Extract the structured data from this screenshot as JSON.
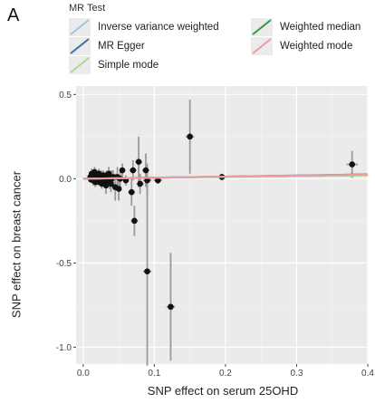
{
  "panel_label": "A",
  "legend": {
    "title": "MR Test",
    "items": [
      {
        "label": "Inverse variance weighted",
        "color": "#9ec7df"
      },
      {
        "label": "MR Egger",
        "color": "#3d6fb0"
      },
      {
        "label": "Simple mode",
        "color": "#a6dc8f"
      },
      {
        "label": "Weighted median",
        "color": "#2f9a3c"
      },
      {
        "label": "Weighted mode",
        "color": "#f4999a"
      }
    ]
  },
  "chart_data": {
    "type": "scatter",
    "xlabel": "SNP effect on serum 25OHD",
    "ylabel": "SNP effect on breast cancer",
    "xlim": [
      -0.01,
      0.4
    ],
    "ylim": [
      -1.1,
      0.55
    ],
    "x_ticks": [
      0.0,
      0.1,
      0.2,
      0.3,
      0.4
    ],
    "x_tick_labels": [
      "0.0",
      "0.1",
      "0.2",
      "0.3",
      "0.4"
    ],
    "y_ticks": [
      0.5,
      0.0,
      -0.5,
      -1.0
    ],
    "y_tick_labels": [
      "0.5",
      "0.0",
      "-0.5",
      "-1.0"
    ],
    "grid": true,
    "points": [
      {
        "x": 0.01,
        "y": 0.01,
        "xerr": 0.004,
        "yerr": 0.02
      },
      {
        "x": 0.011,
        "y": -0.005,
        "xerr": 0.004,
        "yerr": 0.02
      },
      {
        "x": 0.012,
        "y": 0.03,
        "xerr": 0.004,
        "yerr": 0.03
      },
      {
        "x": 0.013,
        "y": 0.02,
        "xerr": 0.004,
        "yerr": 0.02
      },
      {
        "x": 0.014,
        "y": -0.01,
        "xerr": 0.004,
        "yerr": 0.03
      },
      {
        "x": 0.015,
        "y": 0.0,
        "xerr": 0.004,
        "yerr": 0.02
      },
      {
        "x": 0.016,
        "y": 0.04,
        "xerr": 0.004,
        "yerr": 0.03
      },
      {
        "x": 0.017,
        "y": -0.02,
        "xerr": 0.004,
        "yerr": 0.03
      },
      {
        "x": 0.018,
        "y": 0.01,
        "xerr": 0.004,
        "yerr": 0.02
      },
      {
        "x": 0.019,
        "y": 0.02,
        "xerr": 0.004,
        "yerr": 0.02
      },
      {
        "x": 0.02,
        "y": -0.01,
        "xerr": 0.004,
        "yerr": 0.03
      },
      {
        "x": 0.021,
        "y": 0.0,
        "xerr": 0.004,
        "yerr": 0.02
      },
      {
        "x": 0.022,
        "y": 0.03,
        "xerr": 0.004,
        "yerr": 0.03
      },
      {
        "x": 0.023,
        "y": -0.02,
        "xerr": 0.004,
        "yerr": 0.02
      },
      {
        "x": 0.024,
        "y": 0.01,
        "xerr": 0.004,
        "yerr": 0.02
      },
      {
        "x": 0.025,
        "y": 0.02,
        "xerr": 0.004,
        "yerr": 0.03
      },
      {
        "x": 0.026,
        "y": -0.03,
        "xerr": 0.004,
        "yerr": 0.03
      },
      {
        "x": 0.027,
        "y": 0.0,
        "xerr": 0.004,
        "yerr": 0.02
      },
      {
        "x": 0.028,
        "y": 0.02,
        "xerr": 0.004,
        "yerr": 0.03
      },
      {
        "x": 0.029,
        "y": -0.01,
        "xerr": 0.004,
        "yerr": 0.02
      },
      {
        "x": 0.03,
        "y": 0.01,
        "xerr": 0.004,
        "yerr": 0.03
      },
      {
        "x": 0.031,
        "y": 0.0,
        "xerr": 0.004,
        "yerr": 0.02
      },
      {
        "x": 0.032,
        "y": -0.04,
        "xerr": 0.004,
        "yerr": 0.05
      },
      {
        "x": 0.033,
        "y": 0.02,
        "xerr": 0.004,
        "yerr": 0.03
      },
      {
        "x": 0.034,
        "y": -0.01,
        "xerr": 0.004,
        "yerr": 0.03
      },
      {
        "x": 0.035,
        "y": 0.0,
        "xerr": 0.004,
        "yerr": 0.02
      },
      {
        "x": 0.036,
        "y": 0.03,
        "xerr": 0.004,
        "yerr": 0.04
      },
      {
        "x": 0.037,
        "y": -0.02,
        "xerr": 0.004,
        "yerr": 0.04
      },
      {
        "x": 0.038,
        "y": 0.01,
        "xerr": 0.004,
        "yerr": 0.03
      },
      {
        "x": 0.039,
        "y": -0.03,
        "xerr": 0.004,
        "yerr": 0.05
      },
      {
        "x": 0.04,
        "y": 0.0,
        "xerr": 0.004,
        "yerr": 0.05
      },
      {
        "x": 0.042,
        "y": 0.01,
        "xerr": 0.004,
        "yerr": 0.04
      },
      {
        "x": 0.045,
        "y": -0.05,
        "xerr": 0.004,
        "yerr": 0.08
      },
      {
        "x": 0.048,
        "y": 0.01,
        "xerr": 0.004,
        "yerr": 0.06
      },
      {
        "x": 0.05,
        "y": -0.06,
        "xerr": 0.004,
        "yerr": 0.07
      },
      {
        "x": 0.052,
        "y": 0.0,
        "xerr": 0.004,
        "yerr": 0.05
      },
      {
        "x": 0.055,
        "y": 0.05,
        "xerr": 0.004,
        "yerr": 0.04
      },
      {
        "x": 0.06,
        "y": -0.01,
        "xerr": 0.004,
        "yerr": 0.03
      },
      {
        "x": 0.068,
        "y": -0.08,
        "xerr": 0.005,
        "yerr": 0.08
      },
      {
        "x": 0.07,
        "y": 0.05,
        "xerr": 0.005,
        "yerr": 0.06
      },
      {
        "x": 0.072,
        "y": -0.25,
        "xerr": 0.005,
        "yerr": 0.09
      },
      {
        "x": 0.078,
        "y": 0.1,
        "xerr": 0.005,
        "yerr": 0.15
      },
      {
        "x": 0.08,
        "y": -0.03,
        "xerr": 0.005,
        "yerr": 0.06
      },
      {
        "x": 0.088,
        "y": 0.05,
        "xerr": 0.005,
        "yerr": 0.1
      },
      {
        "x": 0.09,
        "y": -0.55,
        "xerr": 0.006,
        "yerr": 0.56
      },
      {
        "x": 0.09,
        "y": -0.01,
        "xerr": 0.006,
        "yerr": 0.1
      },
      {
        "x": 0.105,
        "y": -0.01,
        "xerr": 0.006,
        "yerr": 0.02
      },
      {
        "x": 0.123,
        "y": -0.76,
        "xerr": 0.006,
        "yerr": 0.32
      },
      {
        "x": 0.15,
        "y": 0.25,
        "xerr": 0.006,
        "yerr": 0.22
      },
      {
        "x": 0.195,
        "y": 0.01,
        "xerr": 0.008,
        "yerr": 0.02
      },
      {
        "x": 0.378,
        "y": 0.085,
        "xerr": 0.008,
        "yerr": 0.08
      }
    ],
    "lines": [
      {
        "name": "Simple mode",
        "slope": 0.05
      },
      {
        "name": "Weighted median",
        "slope": 0.06
      },
      {
        "name": "MR Egger",
        "slope": 0.065
      },
      {
        "name": "Inverse variance weighted",
        "slope": 0.06
      },
      {
        "name": "Weighted mode",
        "slope": 0.062
      }
    ]
  }
}
